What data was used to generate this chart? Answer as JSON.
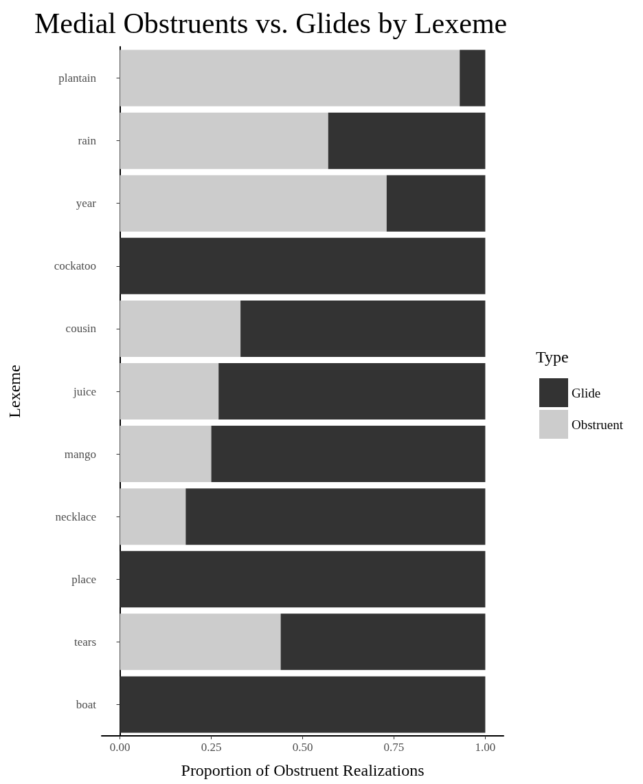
{
  "chart_data": {
    "type": "bar",
    "orientation": "horizontal",
    "stacked": true,
    "title": "Medial Obstruents vs. Glides by Lexeme",
    "xlabel": "Proportion of Obstruent Realizations",
    "ylabel": "Lexeme",
    "legend_title": "Type",
    "legend": "right",
    "grid": false,
    "categories": [
      "plantain",
      "rain",
      "year",
      "cockatoo",
      "cousin",
      "juice",
      "mango",
      "necklace",
      "place",
      "tears",
      "boat"
    ],
    "series": [
      {
        "name": "Obstruent",
        "color": "#cccccc",
        "values": [
          0.93,
          0.57,
          0.73,
          0,
          0.33,
          0.27,
          0.25,
          0.18,
          0,
          0.44,
          0
        ]
      },
      {
        "name": "Glide",
        "color": "#333333",
        "values": [
          0.07,
          0.43,
          0.27,
          1,
          0.67,
          0.73,
          0.75,
          0.82,
          1,
          0.56,
          1
        ]
      }
    ],
    "xlim": [
      -0.05,
      1.05
    ],
    "xticks": [
      {
        "value": 0,
        "label": "0.00"
      },
      {
        "value": 0.25,
        "label": "0.25"
      },
      {
        "value": 0.5,
        "label": "0.50"
      },
      {
        "value": 0.75,
        "label": "0.75"
      },
      {
        "value": 1,
        "label": "1.00"
      }
    ]
  }
}
